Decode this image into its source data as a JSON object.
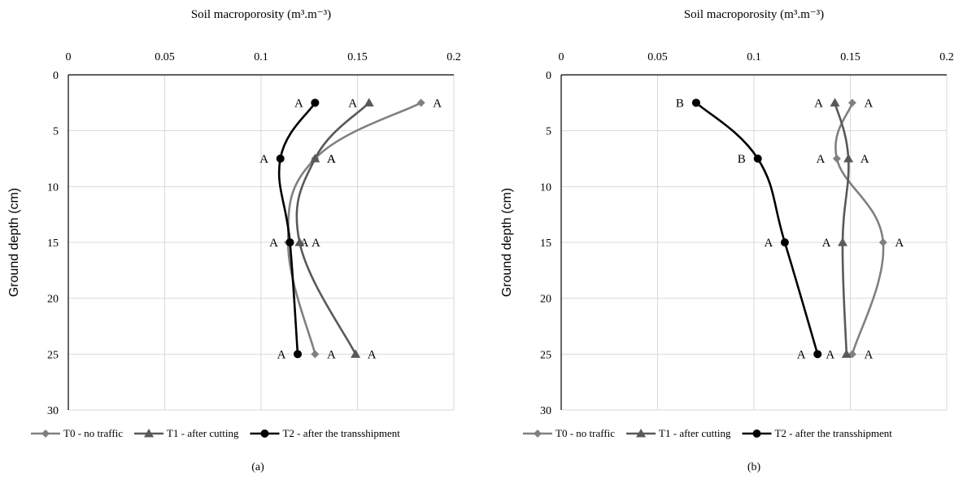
{
  "chart_data": [
    {
      "type": "line",
      "title": "Soil macroporosity (m³.m⁻³)",
      "xlabel": "",
      "ylabel": "Ground depth (cm)",
      "caption": "(a)",
      "xlim": [
        0,
        0.2
      ],
      "ylim": [
        0,
        30
      ],
      "x_ticks": [
        "0",
        "0.05",
        "0.1",
        "0.15",
        "0.2"
      ],
      "y_ticks": [
        "0",
        "5",
        "10",
        "15",
        "20",
        "25",
        "30"
      ],
      "x_axis_position": "top",
      "y_inverted": true,
      "grid": true,
      "legend_position": "bottom",
      "series": [
        {
          "name": "T0 - no traffic",
          "marker": "diamond",
          "color": "#808080",
          "x": [
            0.183,
            0.128,
            0.114,
            0.128
          ],
          "y": [
            2.5,
            7.5,
            15,
            25
          ],
          "labels": [
            "A",
            "A",
            "A",
            "A"
          ]
        },
        {
          "name": "T1 - after cutting",
          "marker": "triangle",
          "color": "#595959",
          "x": [
            0.156,
            0.128,
            0.12,
            0.149
          ],
          "y": [
            2.5,
            7.5,
            15,
            25
          ],
          "labels": [
            "A",
            "A",
            "A",
            "A"
          ]
        },
        {
          "name": "T2 - after the transshipment",
          "marker": "circle",
          "color": "#000000",
          "x": [
            0.128,
            0.11,
            0.115,
            0.119
          ],
          "y": [
            2.5,
            7.5,
            15,
            25
          ],
          "labels": [
            "A",
            "A",
            "A",
            "A"
          ]
        }
      ]
    },
    {
      "type": "line",
      "title": "Soil macroporosity (m³.m⁻³)",
      "xlabel": "",
      "ylabel": "Ground depth (cm)",
      "caption": "(b)",
      "xlim": [
        0,
        0.2
      ],
      "ylim": [
        0,
        30
      ],
      "x_ticks": [
        "0",
        "0.05",
        "0.1",
        "0.15",
        "0.2"
      ],
      "y_ticks": [
        "0",
        "5",
        "10",
        "15",
        "20",
        "25",
        "30"
      ],
      "x_axis_position": "top",
      "y_inverted": true,
      "grid": true,
      "legend_position": "bottom",
      "series": [
        {
          "name": "T0 - no traffic",
          "marker": "diamond",
          "color": "#808080",
          "x": [
            0.151,
            0.143,
            0.167,
            0.151
          ],
          "y": [
            2.5,
            7.5,
            15,
            25
          ],
          "labels": [
            "A",
            "A",
            "A",
            "A"
          ]
        },
        {
          "name": "T1 - after cutting",
          "marker": "triangle",
          "color": "#595959",
          "x": [
            0.142,
            0.149,
            0.146,
            0.148
          ],
          "y": [
            2.5,
            7.5,
            15,
            25
          ],
          "labels": [
            "A",
            "A",
            "A",
            "A"
          ]
        },
        {
          "name": "T2 - after the transshipment",
          "marker": "circle",
          "color": "#000000",
          "x": [
            0.07,
            0.102,
            0.116,
            0.133
          ],
          "y": [
            2.5,
            7.5,
            15,
            25
          ],
          "labels": [
            "B",
            "B",
            "A",
            "A"
          ]
        }
      ]
    }
  ]
}
